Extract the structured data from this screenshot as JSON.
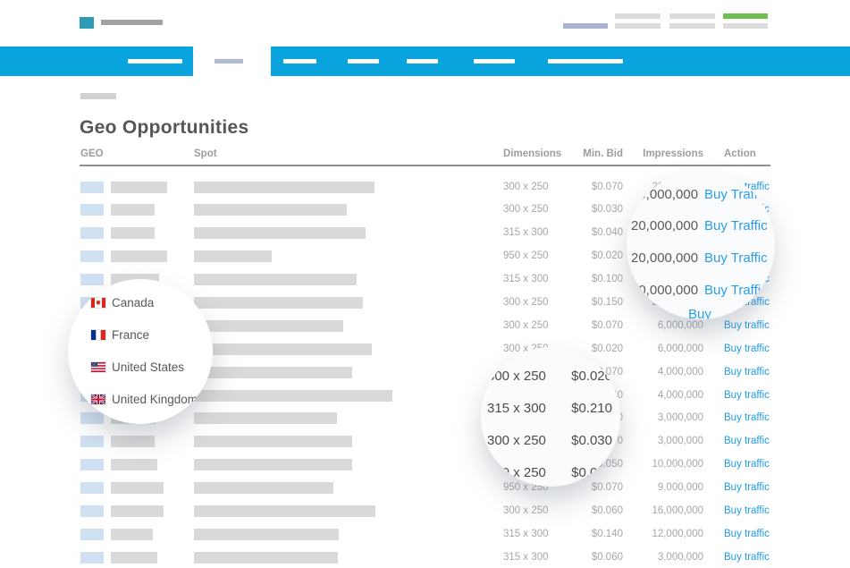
{
  "page": {
    "title": "Geo Opportunities"
  },
  "table": {
    "headers": {
      "geo": "GEO",
      "spot": "Spot",
      "dimensions": "Dimensions",
      "min_bid": "Min. Bid",
      "impressions": "Impressions",
      "action": "Action"
    },
    "action_label": "Buy traffic",
    "rows": [
      {
        "dimensions": "300 x 250",
        "min_bid": "$0.070",
        "impressions": "20,000,000",
        "geo_bar_width": 63,
        "spot_bar_width": 202
      },
      {
        "dimensions": "300 x 250",
        "min_bid": "$0.030",
        "impressions": "20,000,000",
        "geo_bar_width": 49,
        "spot_bar_width": 171
      },
      {
        "dimensions": "315 x 300",
        "min_bid": "$0.040",
        "impressions": "20,000,000",
        "geo_bar_width": 49,
        "spot_bar_width": 192
      },
      {
        "dimensions": "950 x 250",
        "min_bid": "$0.020",
        "impressions": "20,000,000",
        "geo_bar_width": 63,
        "spot_bar_width": 87
      },
      {
        "dimensions": "315 x 300",
        "min_bid": "$0.100",
        "impressions": "20,000,000",
        "geo_bar_width": 54,
        "spot_bar_width": 182
      },
      {
        "dimensions": "300 x 250",
        "min_bid": "$0.150",
        "impressions": "20,000,000",
        "geo_bar_width": 55,
        "spot_bar_width": 189
      },
      {
        "dimensions": "300 x 250",
        "min_bid": "$0.070",
        "impressions": "6,000,000",
        "geo_bar_width": 50,
        "spot_bar_width": 167
      },
      {
        "dimensions": "300 x 250",
        "min_bid": "$0.020",
        "impressions": "6,000,000",
        "geo_bar_width": 55,
        "spot_bar_width": 199
      },
      {
        "dimensions": "300 x 250",
        "min_bid": "$0.070",
        "impressions": "4,000,000",
        "geo_bar_width": 52,
        "spot_bar_width": 177
      },
      {
        "dimensions": "315 x 300",
        "min_bid": "$0.040",
        "impressions": "4,000,000",
        "geo_bar_width": 55,
        "spot_bar_width": 222
      },
      {
        "dimensions": "315 x 300",
        "min_bid": "$0.210",
        "impressions": "3,000,000",
        "geo_bar_width": 50,
        "spot_bar_width": 160
      },
      {
        "dimensions": "300 x 250",
        "min_bid": "$0.070",
        "impressions": "3,000,000",
        "geo_bar_width": 49,
        "spot_bar_width": 177
      },
      {
        "dimensions": "300 x 250",
        "min_bid": "$0.050",
        "impressions": "10,000,000",
        "geo_bar_width": 52,
        "spot_bar_width": 177
      },
      {
        "dimensions": "950 x 250",
        "min_bid": "$0.070",
        "impressions": "9,000,000",
        "geo_bar_width": 59,
        "spot_bar_width": 156
      },
      {
        "dimensions": "300 x 250",
        "min_bid": "$0.060",
        "impressions": "16,000,000",
        "geo_bar_width": 59,
        "spot_bar_width": 203
      },
      {
        "dimensions": "315 x 300",
        "min_bid": "$0.140",
        "impressions": "12,000,000",
        "geo_bar_width": 47,
        "spot_bar_width": 162
      },
      {
        "dimensions": "315 x 300",
        "min_bid": "$0.060",
        "impressions": "3,000,000",
        "geo_bar_width": 52,
        "spot_bar_width": 161
      }
    ]
  },
  "magnifiers": {
    "geo_zoom": {
      "countries": [
        {
          "flag": "ca",
          "name": "Canada"
        },
        {
          "flag": "fr",
          "name": "France"
        },
        {
          "flag": "us",
          "name": "United States"
        },
        {
          "flag": "gb",
          "name": "United Kingdom"
        }
      ]
    },
    "bid_zoom": {
      "rows": [
        {
          "dimensions": "300 x 250",
          "min_bid": "$0.020"
        },
        {
          "dimensions": "315 x 300",
          "min_bid": "$0.210"
        },
        {
          "dimensions": "300 x 250",
          "min_bid": "$0.030"
        },
        {
          "dimensions": "950 x 250",
          "min_bid": "$0.050"
        }
      ]
    },
    "impressions_zoom": {
      "rows": [
        {
          "impressions": "20,000,000",
          "action": "Buy Traffic"
        },
        {
          "impressions": "20,000,000",
          "action": "Buy Traffic"
        },
        {
          "impressions": "20,000,000",
          "action": "Buy Traffic"
        },
        {
          "impressions": "20,000,000",
          "action": "Buy Traffic"
        }
      ],
      "partial_action": "Buy"
    }
  },
  "colors": {
    "nav_blue": "#09a4dd",
    "link_blue": "#1e9ce6",
    "green_accent": "#6dbf4e",
    "lavender_accent": "#a9b3d2",
    "logo_teal": "#2d9cb4",
    "placeholder_gray": "#d9d9d9",
    "geo_square_blue": "#cfe0f2"
  }
}
